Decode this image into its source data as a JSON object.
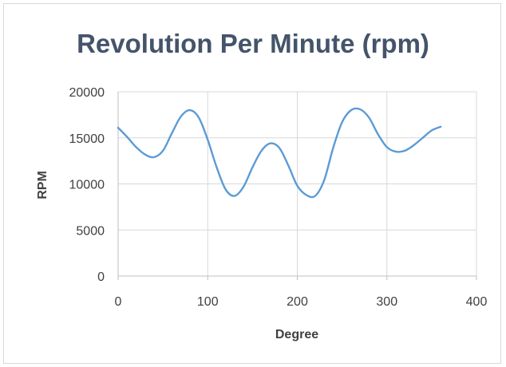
{
  "chart_data": {
    "type": "line",
    "title": "Revolution Per Minute (rpm)",
    "xlabel": "Degree",
    "ylabel": "RPM",
    "xlim": [
      0,
      400
    ],
    "ylim": [
      0,
      20000
    ],
    "xticks": [
      0,
      100,
      200,
      300,
      400
    ],
    "yticks": [
      0,
      5000,
      10000,
      15000,
      20000
    ],
    "grid": true,
    "legend": "none",
    "line_color": "#5b9bd5",
    "series": [
      {
        "x": [
          0,
          10,
          20,
          30,
          40,
          50,
          60,
          70,
          80,
          90,
          100,
          110,
          120,
          130,
          140,
          150,
          160,
          170,
          180,
          190,
          200,
          210,
          220,
          230,
          240,
          250,
          260,
          270,
          280,
          290,
          300,
          310,
          320,
          330,
          340,
          350,
          360
        ],
        "values": [
          16100,
          15100,
          14000,
          13200,
          12900,
          13600,
          15500,
          17300,
          18000,
          17200,
          14800,
          11800,
          9400,
          8700,
          9700,
          11800,
          13600,
          14400,
          13900,
          12000,
          9800,
          8800,
          8700,
          10400,
          13900,
          16700,
          18000,
          18100,
          17200,
          15400,
          14000,
          13500,
          13600,
          14200,
          15000,
          15800,
          16200
        ]
      }
    ]
  }
}
